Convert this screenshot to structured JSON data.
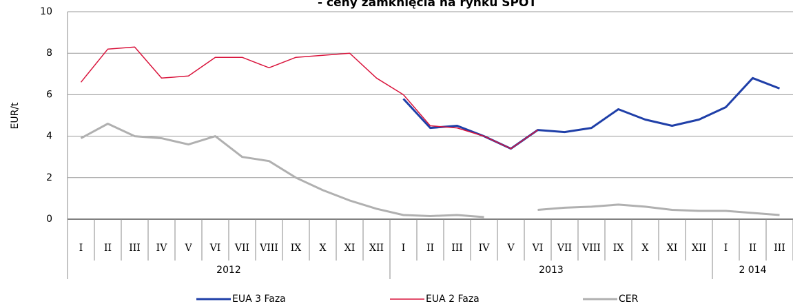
{
  "chart_data": {
    "type": "line",
    "title": "- ceny zamknięcia na rynku SPOT",
    "y_label": "EUR/t",
    "categories": [
      "I",
      "II",
      "III",
      "IV",
      "V",
      "VI",
      "VII",
      "VIII",
      "IX",
      "X",
      "XI",
      "XII",
      "I",
      "II",
      "III",
      "IV",
      "V",
      "VI",
      "VII",
      "VIII",
      "IX",
      "X",
      "XI",
      "XII",
      "I",
      "II",
      "III"
    ],
    "groups": [
      {
        "label": "2012",
        "span": 12
      },
      {
        "label": "2013",
        "span": 12
      },
      {
        "label": "2 014",
        "span": 3
      }
    ],
    "series": [
      {
        "name": "EUA 3 Faza",
        "color": "#1f3fa8",
        "width": 3,
        "values": [
          null,
          null,
          null,
          null,
          null,
          null,
          null,
          null,
          null,
          null,
          null,
          null,
          5.8,
          4.4,
          4.5,
          4.0,
          3.4,
          4.3,
          4.2,
          4.4,
          5.3,
          4.8,
          4.5,
          4.8,
          5.4,
          6.8,
          6.3
        ]
      },
      {
        "name": "EUA 2 Faza",
        "color": "#d9143c",
        "width": 1.5,
        "values": [
          6.6,
          8.2,
          8.3,
          6.8,
          6.9,
          7.8,
          7.8,
          7.3,
          7.8,
          7.9,
          8.0,
          6.8,
          6.0,
          4.5,
          4.4,
          4.0,
          3.4,
          4.3,
          null,
          null,
          null,
          null,
          null,
          null,
          null,
          null,
          null
        ]
      },
      {
        "name": "CER",
        "color": "#b0b0b0",
        "width": 3,
        "values": [
          3.9,
          4.6,
          4.0,
          3.9,
          3.6,
          4.0,
          3.0,
          2.8,
          2.0,
          1.4,
          0.9,
          0.5,
          0.2,
          0.15,
          0.2,
          0.1,
          null,
          0.45,
          0.55,
          0.6,
          0.7,
          0.6,
          0.45,
          0.4,
          0.4,
          0.3,
          0.2
        ]
      }
    ],
    "ylim": [
      0,
      10
    ],
    "yticks": [
      0,
      2,
      4,
      6,
      8,
      10
    ],
    "grid": true
  }
}
